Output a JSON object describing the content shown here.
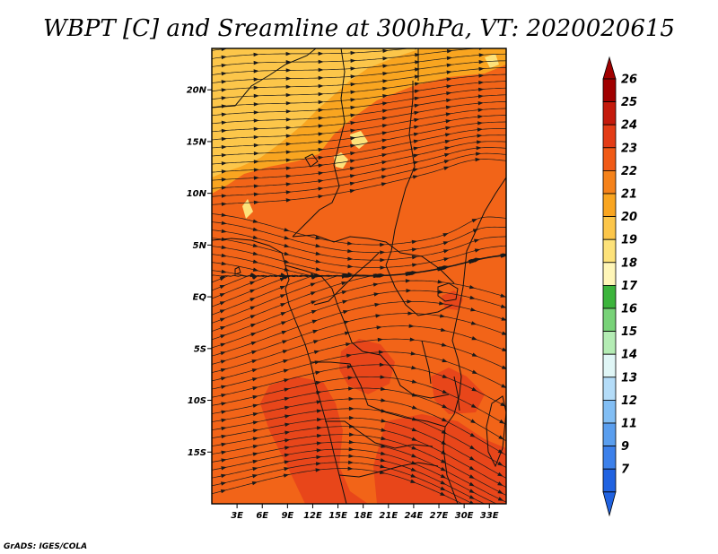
{
  "title": "WBPT [C] and Sreamline at 300hPa, VT: 2020020615",
  "credit": "GrADS: IGES/COLA",
  "map": {
    "lon_range": [
      0,
      35
    ],
    "lat_range": [
      -20,
      24
    ],
    "lon_ticks": [
      "3E",
      "6E",
      "9E",
      "12E",
      "15E",
      "18E",
      "21E",
      "24E",
      "27E",
      "30E",
      "33E"
    ],
    "lat_ticks": [
      "20N",
      "15N",
      "10N",
      "5N",
      "EQ",
      "5S",
      "10S",
      "15S"
    ],
    "background_color": "#f26418",
    "regions": [
      {
        "name": "north-band",
        "color": "#f9a520"
      },
      {
        "name": "north-light",
        "color": "#fcc64a"
      },
      {
        "name": "pale-patches",
        "color": "#fde27a"
      },
      {
        "name": "south-warm",
        "color": "#e8461a"
      }
    ]
  },
  "colorbar": {
    "labels": [
      "26",
      "25",
      "24",
      "23",
      "22",
      "21",
      "20",
      "19",
      "18",
      "17",
      "16",
      "15",
      "14",
      "13",
      "12",
      "11",
      "9",
      "7"
    ],
    "colors": [
      "#a00000",
      "#c41a0c",
      "#e33c16",
      "#f05a16",
      "#f5821a",
      "#f9a520",
      "#fcc64a",
      "#fde27a",
      "#fff6b8",
      "#3cb43c",
      "#78d278",
      "#b4ecb4",
      "#e0f6f6",
      "#b4dcf8",
      "#82bef4",
      "#5a9eee",
      "#3c80ea",
      "#2062e0"
    ],
    "top_arrow_color": "#a00000",
    "bottom_arrow_color": "#2062e0"
  }
}
